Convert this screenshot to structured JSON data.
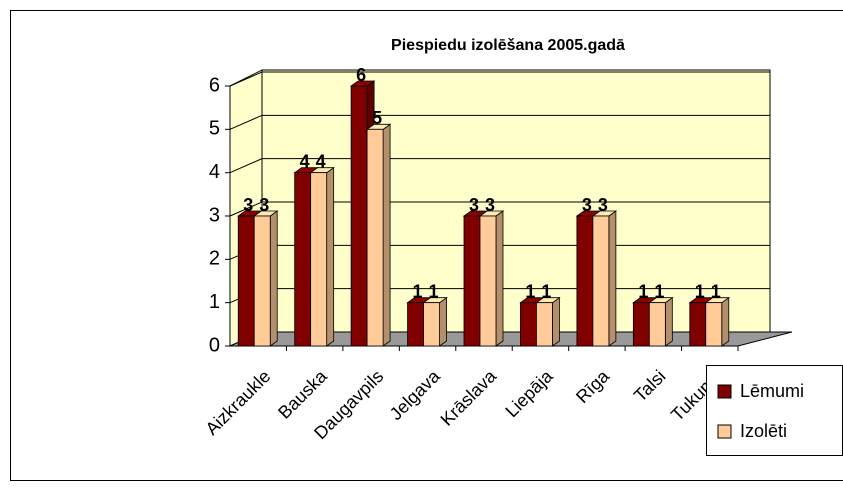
{
  "chart_data": {
    "type": "bar3d",
    "title": "Piespiedu izolēšana 2005.gadā",
    "categories": [
      "Aizkraukle",
      "Bauska",
      "Daugavpils",
      "Jelgava",
      "Krāslava",
      "Liepāja",
      "Rīga",
      "Talsi",
      "Tukums"
    ],
    "series": [
      {
        "name": "Lēmumi",
        "color": "#800000",
        "values": [
          3,
          4,
          6,
          1,
          3,
          1,
          3,
          1,
          1
        ]
      },
      {
        "name": "Izolēti",
        "color": "#ffcc99",
        "values": [
          3,
          4,
          5,
          1,
          3,
          1,
          3,
          1,
          1
        ]
      }
    ],
    "ylim": [
      0,
      6
    ],
    "yticks": [
      0,
      1,
      2,
      3,
      4,
      5,
      6
    ],
    "grid": true,
    "legend": "right"
  }
}
